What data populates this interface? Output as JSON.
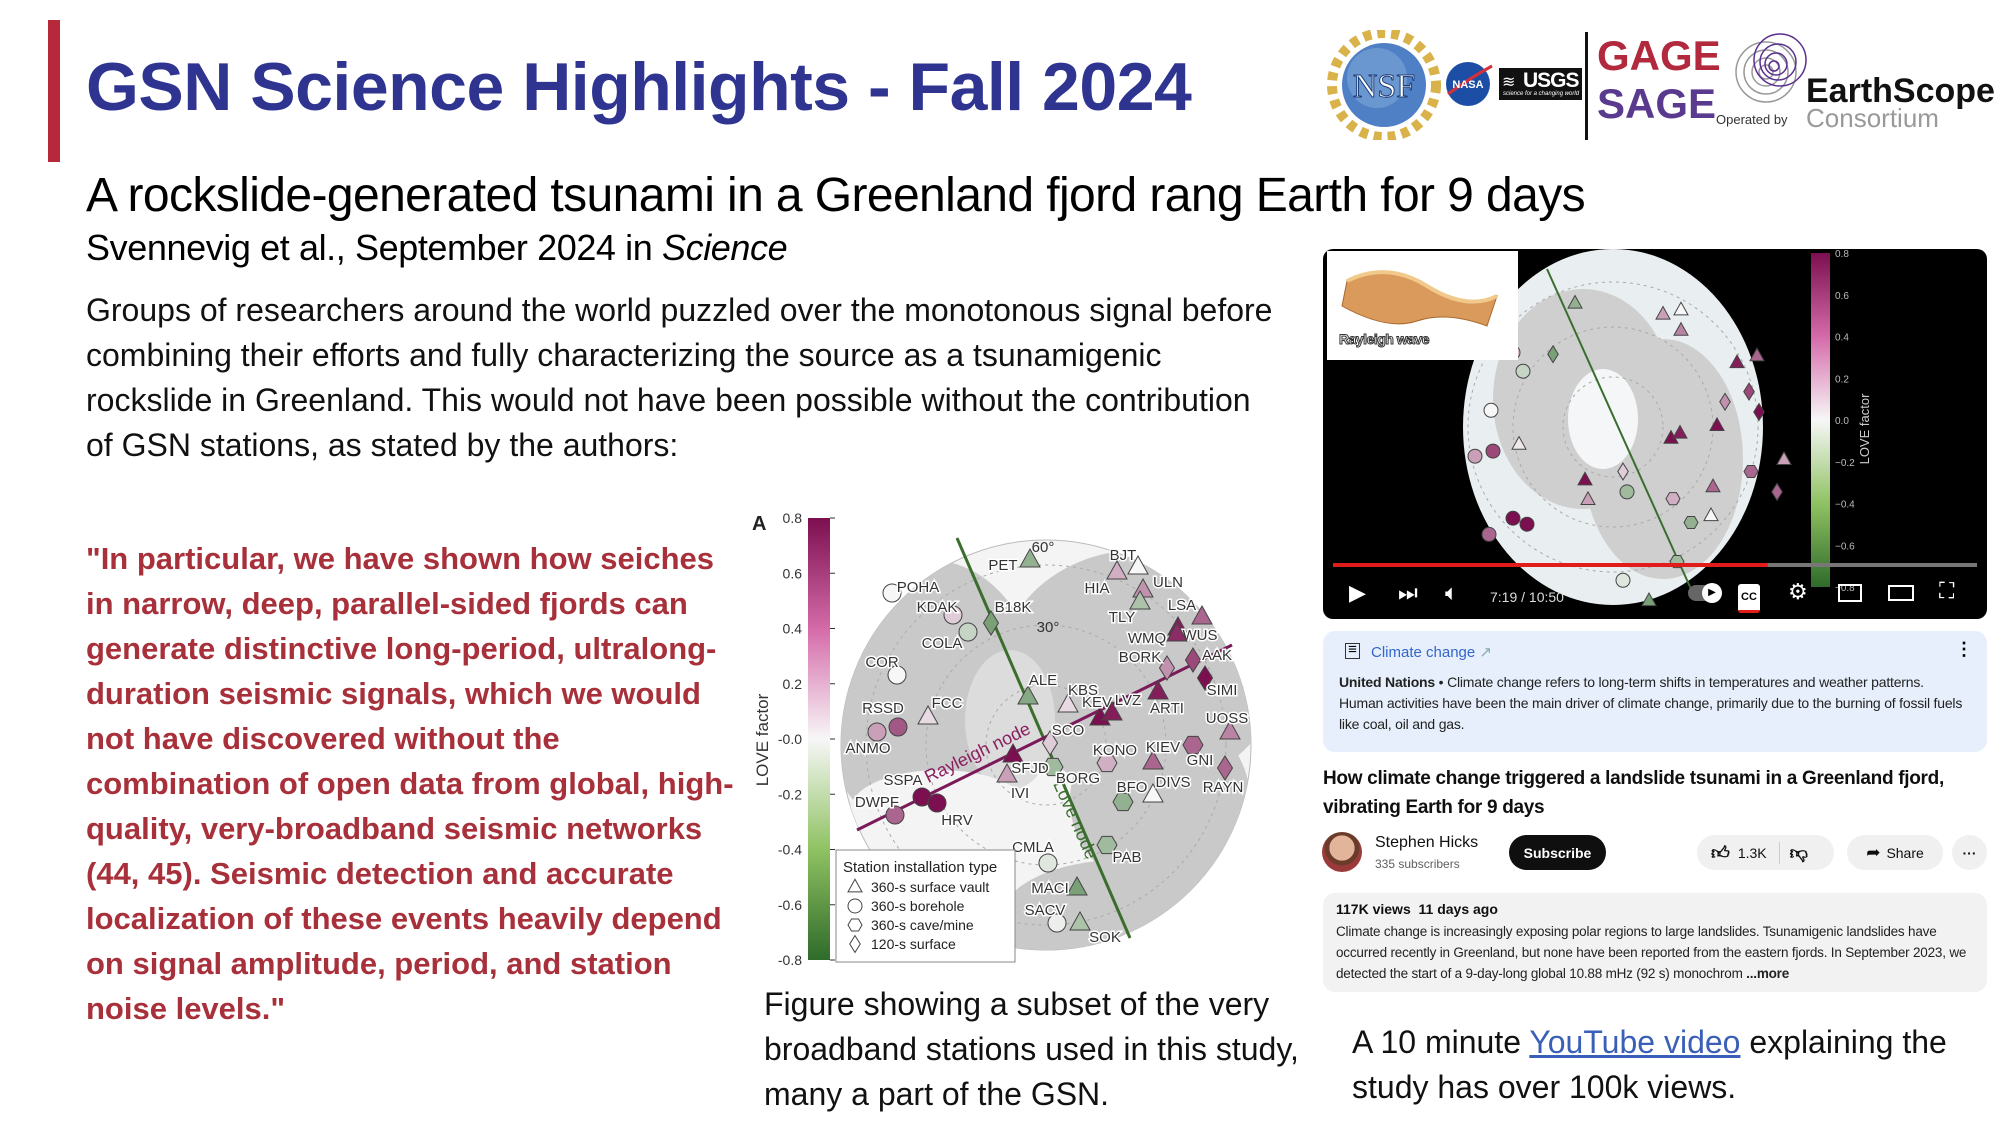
{
  "header": {
    "title": "GSN Science Highlights - Fall 2024",
    "subtitle": "A rockslide-generated tsunami in a Greenland fjord rang Earth for 9 days",
    "citation_prefix": "Svennevig et al., September 2024 in ",
    "citation_journal": "Science"
  },
  "logos": {
    "nsf": "NSF",
    "nasa": "NASA",
    "usgs": "USGS",
    "usgs_tagline": "science for a changing world",
    "gage": "GAGE",
    "sage": "SAGE",
    "operated_by": "Operated by",
    "earthscope": "EarthScope",
    "consortium": "Consortium"
  },
  "intro": "Groups of researchers around the world puzzled over the monotonous signal before combining their efforts and fully characterizing the source as a tsunamigenic rockslide in Greenland. This would not have been possible without the contribution of GSN stations, as stated by the authors:",
  "quote": "\"In particular, we have shown how seiches in narrow, deep, parallel-sided fjords can generate distinctive long-period, ultralong-duration seismic signals, which we would not have discovered without the combination of open data from global, high-quality, very-broadband seismic networks (44, 45). Seismic detection and accurate localization of these events heavily depend on signal amplitude, period, and station noise levels.\"",
  "figure": {
    "panel_label": "A",
    "colorbar_label": "LOVE factor",
    "colorbar_ticks": [
      "0.8",
      "0.6",
      "0.4",
      "0.2",
      "-0.0",
      "-0.2",
      "-0.4",
      "-0.6",
      "-0.8"
    ],
    "colorbar_range": [
      -0.8,
      0.8
    ],
    "colors": {
      "positive": "#7b0f4f",
      "neutral": "#f7f7f7",
      "negative": "#2f6b2a"
    },
    "latitude_labels": [
      "60°",
      "30°"
    ],
    "rayleigh_node_label": "Rayleigh node",
    "love_node_label": "Love node",
    "legend_title": "Station installation type",
    "legend_items": [
      {
        "shape": "triangle",
        "label": "360-s surface vault"
      },
      {
        "shape": "circle",
        "label": "360-s borehole"
      },
      {
        "shape": "hexagon",
        "label": "360-s cave/mine"
      },
      {
        "shape": "diamond",
        "label": "120-s surface"
      }
    ],
    "stations": [
      {
        "name": "PET",
        "shape": "triangle",
        "love": -0.4
      },
      {
        "name": "BJT",
        "shape": "triangle",
        "love": 0.0
      },
      {
        "name": "HIA",
        "shape": "triangle",
        "love": 0.25
      },
      {
        "name": "ULN",
        "shape": "triangle",
        "love": 0.35
      },
      {
        "name": "TLY",
        "shape": "triangle",
        "love": -0.3
      },
      {
        "name": "LSA",
        "shape": "triangle",
        "love": 0.75
      },
      {
        "name": "WUS",
        "shape": "triangle",
        "love": 0.5
      },
      {
        "name": "WMQ",
        "shape": "triangle",
        "love": 0.7
      },
      {
        "name": "BORK",
        "shape": "diamond",
        "love": 0.35
      },
      {
        "name": "AAK",
        "shape": "diamond",
        "love": 0.6
      },
      {
        "name": "SIMI",
        "shape": "diamond",
        "love": 0.8
      },
      {
        "name": "ARTI",
        "shape": "triangle",
        "love": 0.75
      },
      {
        "name": "KBS",
        "shape": "triangle",
        "love": 0.1
      },
      {
        "name": "KEV",
        "shape": "triangle",
        "love": 0.8
      },
      {
        "name": "LVZ",
        "shape": "triangle",
        "love": 0.75
      },
      {
        "name": "UOSS",
        "shape": "triangle",
        "love": 0.4
      },
      {
        "name": "SCO",
        "shape": "diamond",
        "love": 0.15
      },
      {
        "name": "ALE",
        "shape": "triangle",
        "love": -0.45
      },
      {
        "name": "KONO",
        "shape": "hexagon",
        "love": 0.25
      },
      {
        "name": "KIEV",
        "shape": "triangle",
        "love": 0.5
      },
      {
        "name": "GNI",
        "shape": "hexagon",
        "love": 0.5
      },
      {
        "name": "RAYN",
        "shape": "diamond",
        "love": 0.5
      },
      {
        "name": "DIVS",
        "shape": "triangle",
        "love": 0.0
      },
      {
        "name": "BFO",
        "shape": "hexagon",
        "love": -0.4
      },
      {
        "name": "BORG",
        "shape": "hexagon",
        "love": -0.35
      },
      {
        "name": "SFJD",
        "shape": "triangle",
        "love": 0.8
      },
      {
        "name": "IVI",
        "shape": "triangle",
        "love": 0.3
      },
      {
        "name": "PAB",
        "shape": "hexagon",
        "love": -0.35
      },
      {
        "name": "CMLA",
        "shape": "circle",
        "love": -0.1
      },
      {
        "name": "MACI",
        "shape": "triangle",
        "love": -0.5
      },
      {
        "name": "SACV",
        "shape": "circle",
        "love": -0.05
      },
      {
        "name": "SOK",
        "shape": "triangle",
        "love": -0.3
      },
      {
        "name": "SSPA",
        "shape": "circle",
        "love": 0.8
      },
      {
        "name": "HRV",
        "shape": "circle",
        "love": 0.8
      },
      {
        "name": "DWPF",
        "shape": "circle",
        "love": 0.5
      },
      {
        "name": "ANMO",
        "shape": "circle",
        "love": 0.3
      },
      {
        "name": "RSSD",
        "shape": "circle",
        "love": 0.55
      },
      {
        "name": "FCC",
        "shape": "triangle",
        "love": 0.1
      },
      {
        "name": "COR",
        "shape": "circle",
        "love": 0.0
      },
      {
        "name": "COLA",
        "shape": "circle",
        "love": -0.2
      },
      {
        "name": "KDAK",
        "shape": "circle",
        "love": 0.15
      },
      {
        "name": "POHA",
        "shape": "circle",
        "love": 0.0
      },
      {
        "name": "B18K",
        "shape": "diamond",
        "love": -0.5
      }
    ]
  },
  "caption": "Figure showing a subset of the very broadband stations used in this study, many a part of the GSN.",
  "video": {
    "inset_label": "Rayleigh wave",
    "colorbar_label": "LOVE factor",
    "colorbar_ticks": [
      "0.8",
      "0.6",
      "0.4",
      "0.2",
      "0.0",
      "−0.2",
      "−0.4",
      "−0.6",
      "−0.8"
    ],
    "time": "7:19 / 10:50",
    "progress_fraction": 0.675,
    "icons": [
      "play-icon",
      "next-icon",
      "volume-icon",
      "autoplay-toggle",
      "cc-icon",
      "gear-icon",
      "miniplayer-icon",
      "theater-icon",
      "fullscreen-icon"
    ]
  },
  "info_panel": {
    "source_label": "Climate change",
    "publisher": "United Nations",
    "text": " • Climate change refers to long-term shifts in temperatures and weather patterns. Human activities have been the main driver of climate change, primarily due to the burning of fossil fuels like coal, oil and gas."
  },
  "video_page": {
    "title": "How climate change triggered a landslide tsunami in a Greenland fjord, vibrating Earth for 9 days",
    "channel": "Stephen Hicks",
    "subscribers": "335 subscribers",
    "subscribe_label": "Subscribe",
    "likes": "1.3K",
    "share_label": "Share",
    "more_label": "···",
    "views_meta": "117K views  11 days ago",
    "description": "Climate change is increasingly exposing polar regions to large landslides. Tsunamigenic landslides have occurred recently in Greenland, but none have been reported from the eastern fjords. In September 2023, we detected the start of a 9-day-long global 10.88 mHz (92 s) monochrom",
    "more_link": " ...more"
  },
  "bottom_text": {
    "prefix": "A 10 minute ",
    "link": "YouTube video",
    "suffix": " explaining the study has over 100k views."
  }
}
